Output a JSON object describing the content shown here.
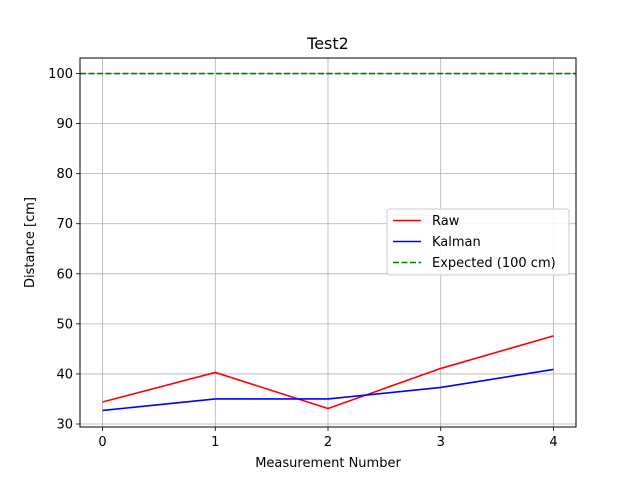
{
  "chart_data": {
    "type": "line",
    "title": "Test2",
    "xlabel": "Measurement Number",
    "ylabel": "Distance [cm]",
    "x": [
      0,
      1,
      2,
      3,
      4
    ],
    "xticks": [
      "0",
      "1",
      "2",
      "3",
      "4"
    ],
    "yticks": [
      "30",
      "40",
      "50",
      "60",
      "70",
      "80",
      "90",
      "100"
    ],
    "xlim": [
      -0.2,
      4.2
    ],
    "ylim": [
      29.4,
      103.1
    ],
    "grid": true,
    "legend_position": "center-right",
    "series": [
      {
        "name": "Raw",
        "color": "#ff0000",
        "style": "solid",
        "values": [
          34.4,
          40.3,
          33.1,
          41.1,
          47.6
        ]
      },
      {
        "name": "Kalman",
        "color": "#0000ff",
        "style": "solid",
        "values": [
          32.7,
          35.0,
          35.0,
          37.3,
          40.9
        ]
      },
      {
        "name": "Expected (100 cm)",
        "color": "#008000",
        "style": "dashed",
        "values": [
          100,
          100,
          100,
          100,
          100
        ]
      }
    ]
  }
}
